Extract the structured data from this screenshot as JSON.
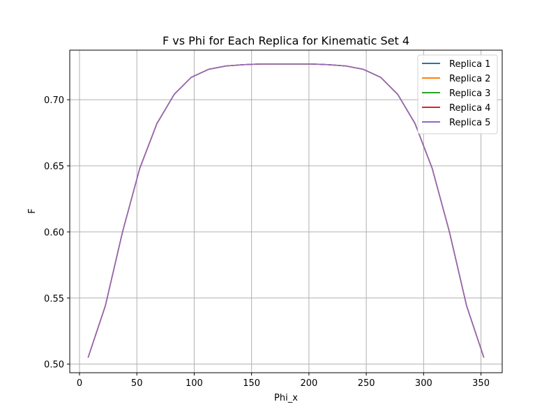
{
  "chart_data": {
    "type": "line",
    "title": "F vs Phi for Each Replica for Kinematic Set 4",
    "xlabel": "Phi_x",
    "ylabel": "F",
    "xlim": [
      -8.5,
      368.5
    ],
    "ylim": [
      0.4935,
      0.7375
    ],
    "xticks": [
      0,
      50,
      100,
      150,
      200,
      250,
      300,
      350
    ],
    "yticks": [
      0.5,
      0.55,
      0.6,
      0.65,
      0.7
    ],
    "ytick_labels": [
      "0.50",
      "0.55",
      "0.60",
      "0.65",
      "0.70"
    ],
    "grid": true,
    "legend_position": "top-right",
    "x": [
      7.5,
      22.5,
      37.5,
      52.5,
      67.5,
      82.5,
      97.5,
      112.5,
      127.5,
      142.5,
      157.5,
      172.5,
      187.5,
      202.5,
      217.5,
      232.5,
      247.5,
      262.5,
      277.5,
      292.5,
      307.5,
      322.5,
      337.5,
      352.5
    ],
    "series": [
      {
        "name": "Replica 1",
        "color": "#1f77b4",
        "values": [
          0.505,
          0.544,
          0.6,
          0.648,
          0.682,
          0.704,
          0.717,
          0.723,
          0.7255,
          0.7265,
          0.727,
          0.727,
          0.727,
          0.727,
          0.7265,
          0.7255,
          0.723,
          0.717,
          0.704,
          0.682,
          0.648,
          0.6,
          0.544,
          0.505
        ]
      },
      {
        "name": "Replica 2",
        "color": "#ff7f0e",
        "values": [
          0.505,
          0.544,
          0.6,
          0.648,
          0.682,
          0.704,
          0.717,
          0.723,
          0.7255,
          0.7265,
          0.727,
          0.727,
          0.727,
          0.727,
          0.7265,
          0.7255,
          0.723,
          0.717,
          0.704,
          0.682,
          0.648,
          0.6,
          0.544,
          0.505
        ]
      },
      {
        "name": "Replica 3",
        "color": "#2ca02c",
        "values": [
          0.505,
          0.544,
          0.6,
          0.648,
          0.682,
          0.704,
          0.717,
          0.723,
          0.7255,
          0.7265,
          0.727,
          0.727,
          0.727,
          0.727,
          0.7265,
          0.7255,
          0.723,
          0.717,
          0.704,
          0.682,
          0.648,
          0.6,
          0.544,
          0.505
        ]
      },
      {
        "name": "Replica 4",
        "color": "#d62728",
        "values": [
          0.505,
          0.544,
          0.6,
          0.648,
          0.682,
          0.704,
          0.717,
          0.723,
          0.7255,
          0.7265,
          0.727,
          0.727,
          0.727,
          0.727,
          0.7265,
          0.7255,
          0.723,
          0.717,
          0.704,
          0.682,
          0.648,
          0.6,
          0.544,
          0.505
        ]
      },
      {
        "name": "Replica 5",
        "color": "#9467bd",
        "values": [
          0.505,
          0.544,
          0.6,
          0.648,
          0.682,
          0.704,
          0.717,
          0.723,
          0.7255,
          0.7265,
          0.727,
          0.727,
          0.727,
          0.727,
          0.7265,
          0.7255,
          0.723,
          0.717,
          0.704,
          0.682,
          0.648,
          0.6,
          0.544,
          0.505
        ]
      }
    ]
  }
}
